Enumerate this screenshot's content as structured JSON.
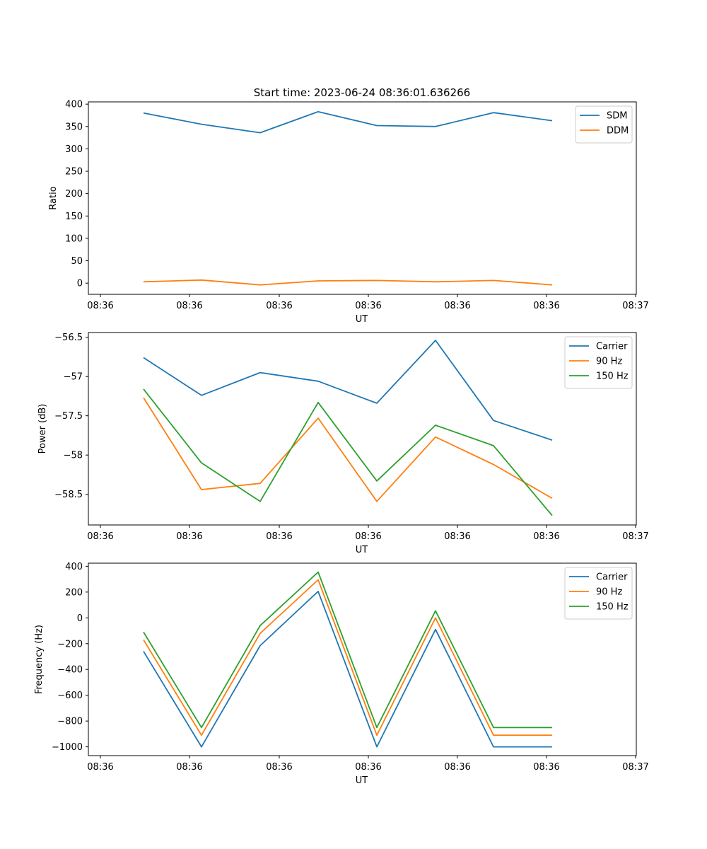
{
  "title": "Start time: 2023-06-24 08:36:01.636266",
  "chart_data": [
    {
      "type": "line",
      "xlabel": "UT",
      "ylabel": "Ratio",
      "x_ticks": [
        "08:36",
        "08:36",
        "08:36",
        "08:36",
        "08:36",
        "08:36",
        "08:37"
      ],
      "y_ticks": [
        0,
        50,
        100,
        150,
        200,
        250,
        300,
        350,
        400
      ],
      "ylim": [
        -25,
        405
      ],
      "legend_position": "top-right",
      "grid": false,
      "series": [
        {
          "name": "SDM",
          "color": "#1f77b4",
          "values": [
            380,
            355,
            336,
            383,
            352,
            350,
            381,
            363
          ]
        },
        {
          "name": "DDM",
          "color": "#ff7f0e",
          "values": [
            3,
            7,
            -4,
            5,
            6,
            3,
            6,
            -4
          ]
        }
      ]
    },
    {
      "type": "line",
      "xlabel": "UT",
      "ylabel": "Power (dB)",
      "x_ticks": [
        "08:36",
        "08:36",
        "08:36",
        "08:36",
        "08:36",
        "08:36",
        "08:37"
      ],
      "y_ticks": [
        -56.5,
        -57.0,
        -57.5,
        -58.0,
        -58.5
      ],
      "ylim": [
        -58.89,
        -56.44
      ],
      "legend_position": "top-right",
      "grid": false,
      "series": [
        {
          "name": "Carrier",
          "color": "#1f77b4",
          "values": [
            -56.76,
            -57.24,
            -56.95,
            -57.06,
            -57.34,
            -56.54,
            -57.56,
            -57.81
          ]
        },
        {
          "name": "90 Hz",
          "color": "#ff7f0e",
          "values": [
            -57.27,
            -58.44,
            -58.36,
            -57.53,
            -58.59,
            -57.77,
            -58.12,
            -58.55
          ]
        },
        {
          "name": "150 Hz",
          "color": "#2ca02c",
          "values": [
            -57.16,
            -58.1,
            -58.59,
            -57.33,
            -58.33,
            -57.62,
            -57.88,
            -58.77
          ]
        }
      ]
    },
    {
      "type": "line",
      "xlabel": "UT",
      "ylabel": "Frequency (Hz)",
      "x_ticks": [
        "08:36",
        "08:36",
        "08:36",
        "08:36",
        "08:36",
        "08:36",
        "08:37"
      ],
      "y_ticks": [
        400,
        200,
        0,
        -200,
        -400,
        -600,
        -800,
        -1000
      ],
      "ylim": [
        -1068,
        424
      ],
      "legend_position": "top-right",
      "grid": false,
      "series": [
        {
          "name": "Carrier",
          "color": "#1f77b4",
          "values": [
            -260,
            -1000,
            -215,
            205,
            -1000,
            -90,
            -1000,
            -1000
          ]
        },
        {
          "name": "90 Hz",
          "color": "#ff7f0e",
          "values": [
            -170,
            -910,
            -120,
            295,
            -910,
            0,
            -910,
            -910
          ]
        },
        {
          "name": "150 Hz",
          "color": "#2ca02c",
          "values": [
            -110,
            -850,
            -60,
            355,
            -850,
            55,
            -850,
            -850
          ]
        }
      ]
    }
  ]
}
